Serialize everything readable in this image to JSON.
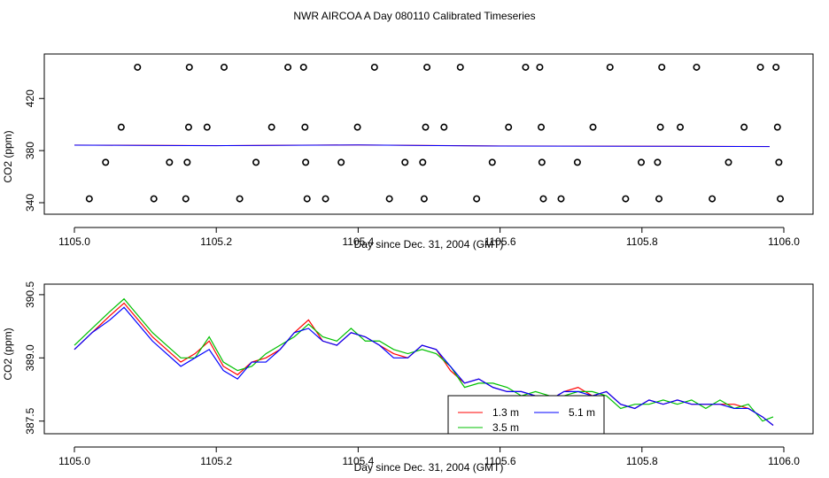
{
  "figure_title": "NWR AIRCOA A  Day 080110  Calibrated Timeseries",
  "colors": {
    "series_1_3m": "#ff0000",
    "series_3_5m": "#00c000",
    "series_5_1m": "#0000ff",
    "markers": "#000000"
  },
  "chart_data": [
    {
      "type": "scatter",
      "title": "",
      "xlabel": "Day since Dec. 31, 2004 (GMT)",
      "ylabel": "CO2 (ppm)",
      "xlim": [
        1105.0,
        1106.0
      ],
      "ylim": [
        340,
        446
      ],
      "xticks": [
        "1105.0",
        "1105.2",
        "1105.4",
        "1105.6",
        "1105.8",
        "1106.0"
      ],
      "yticks": [
        "340",
        "380",
        "420"
      ],
      "grid": false,
      "markers": [
        [
          1105.021,
          343
        ],
        [
          1105.044,
          371
        ],
        [
          1105.066,
          398
        ],
        [
          1105.089,
          444
        ],
        [
          1105.112,
          343
        ],
        [
          1105.134,
          371
        ],
        [
          1105.157,
          343
        ],
        [
          1105.159,
          371
        ],
        [
          1105.161,
          398
        ],
        [
          1105.162,
          444
        ],
        [
          1105.187,
          398
        ],
        [
          1105.211,
          444
        ],
        [
          1105.233,
          343
        ],
        [
          1105.256,
          371
        ],
        [
          1105.278,
          398
        ],
        [
          1105.301,
          444
        ],
        [
          1105.323,
          444
        ],
        [
          1105.325,
          398
        ],
        [
          1105.326,
          371
        ],
        [
          1105.328,
          343
        ],
        [
          1105.354,
          343
        ],
        [
          1105.376,
          371
        ],
        [
          1105.399,
          398
        ],
        [
          1105.423,
          444
        ],
        [
          1105.444,
          343
        ],
        [
          1105.466,
          371
        ],
        [
          1105.491,
          371
        ],
        [
          1105.493,
          343
        ],
        [
          1105.495,
          398
        ],
        [
          1105.497,
          444
        ],
        [
          1105.521,
          398
        ],
        [
          1105.544,
          444
        ],
        [
          1105.567,
          343
        ],
        [
          1105.589,
          371
        ],
        [
          1105.612,
          398
        ],
        [
          1105.636,
          444
        ],
        [
          1105.656,
          444
        ],
        [
          1105.658,
          398
        ],
        [
          1105.659,
          371
        ],
        [
          1105.661,
          343
        ],
        [
          1105.686,
          343
        ],
        [
          1105.709,
          371
        ],
        [
          1105.731,
          398
        ],
        [
          1105.755,
          444
        ],
        [
          1105.777,
          343
        ],
        [
          1105.799,
          371
        ],
        [
          1105.822,
          371
        ],
        [
          1105.824,
          343
        ],
        [
          1105.826,
          398
        ],
        [
          1105.828,
          444
        ],
        [
          1105.854,
          398
        ],
        [
          1105.877,
          444
        ],
        [
          1105.899,
          343
        ],
        [
          1105.922,
          371
        ],
        [
          1105.944,
          398
        ],
        [
          1105.967,
          444
        ],
        [
          1105.989,
          444
        ],
        [
          1105.991,
          398
        ],
        [
          1105.993,
          371
        ],
        [
          1105.995,
          343
        ]
      ],
      "series": [
        {
          "name": "",
          "color": "#ff0000",
          "x": [
            1105.0,
            1105.2,
            1105.4,
            1105.6,
            1105.8,
            1105.98
          ],
          "values": [
            389.1,
            388.5,
            389.3,
            388.1,
            387.9,
            387.5
          ]
        },
        {
          "name": "",
          "color": "#0000ff",
          "x": [
            1105.0,
            1105.2,
            1105.4,
            1105.6,
            1105.8,
            1105.98
          ],
          "values": [
            389.0,
            388.4,
            389.2,
            388.0,
            387.8,
            387.4
          ]
        }
      ]
    },
    {
      "type": "line",
      "title": "",
      "xlabel": "Day since Dec. 31, 2004 (GMT)",
      "ylabel": "CO2 (ppm)",
      "xlim": [
        1105.0,
        1106.0
      ],
      "ylim": [
        387.2,
        390.75
      ],
      "xticks": [
        "1105.0",
        "1105.2",
        "1105.4",
        "1105.6",
        "1105.8",
        "1106.0"
      ],
      "yticks": [
        "387.5",
        "389.0",
        "390.5"
      ],
      "grid": false,
      "legend_position": "bottom-right",
      "x": [
        1105.0,
        1105.025,
        1105.05,
        1105.07,
        1105.09,
        1105.11,
        1105.13,
        1105.15,
        1105.17,
        1105.19,
        1105.21,
        1105.23,
        1105.25,
        1105.27,
        1105.29,
        1105.31,
        1105.33,
        1105.35,
        1105.37,
        1105.39,
        1105.41,
        1105.43,
        1105.45,
        1105.47,
        1105.49,
        1105.51,
        1105.53,
        1105.55,
        1105.57,
        1105.59,
        1105.61,
        1105.63,
        1105.65,
        1105.67,
        1105.69,
        1105.71,
        1105.73,
        1105.75,
        1105.77,
        1105.79,
        1105.81,
        1105.83,
        1105.85,
        1105.87,
        1105.89,
        1105.91,
        1105.93,
        1105.95,
        1105.97,
        1105.985
      ],
      "series": [
        {
          "name": "1.3 m",
          "color": "#ff0000",
          "values": [
            389.2,
            389.6,
            390.0,
            390.3,
            389.9,
            389.5,
            389.2,
            388.9,
            389.1,
            389.4,
            388.8,
            388.6,
            388.9,
            389.0,
            389.2,
            389.6,
            389.9,
            389.4,
            389.3,
            389.6,
            389.5,
            389.3,
            389.1,
            389.0,
            389.3,
            389.2,
            388.7,
            388.4,
            388.5,
            388.3,
            388.2,
            388.2,
            388.1,
            388.0,
            388.2,
            388.3,
            388.1,
            388.2,
            387.9,
            387.8,
            388.0,
            387.9,
            388.0,
            387.9,
            387.9,
            387.9,
            387.9,
            387.8,
            387.6,
            387.4
          ]
        },
        {
          "name": "3.5 m",
          "color": "#00c000",
          "values": [
            389.3,
            389.7,
            390.1,
            390.4,
            390.0,
            389.6,
            389.3,
            389.0,
            389.0,
            389.5,
            388.9,
            388.7,
            388.8,
            389.1,
            389.3,
            389.5,
            389.8,
            389.5,
            389.4,
            389.7,
            389.4,
            389.4,
            389.2,
            389.1,
            389.2,
            389.1,
            388.8,
            388.3,
            388.4,
            388.4,
            388.3,
            388.1,
            388.2,
            388.1,
            388.1,
            388.2,
            388.2,
            388.1,
            387.8,
            387.9,
            387.9,
            388.0,
            387.9,
            388.0,
            387.8,
            388.0,
            387.8,
            387.9,
            387.5,
            387.6
          ]
        },
        {
          "name": "5.1 m",
          "color": "#0000ff",
          "values": [
            389.2,
            389.6,
            389.9,
            390.2,
            389.8,
            389.4,
            389.1,
            388.8,
            389.0,
            389.2,
            388.7,
            388.5,
            388.9,
            388.9,
            389.2,
            389.6,
            389.7,
            389.4,
            389.3,
            389.6,
            389.5,
            389.3,
            389.0,
            389.0,
            389.3,
            389.2,
            388.8,
            388.4,
            388.5,
            388.3,
            388.2,
            388.2,
            388.1,
            388.0,
            388.2,
            388.2,
            388.1,
            388.2,
            387.9,
            387.8,
            388.0,
            387.9,
            388.0,
            387.9,
            387.9,
            387.9,
            387.8,
            387.8,
            387.6,
            387.4
          ]
        }
      ]
    }
  ]
}
